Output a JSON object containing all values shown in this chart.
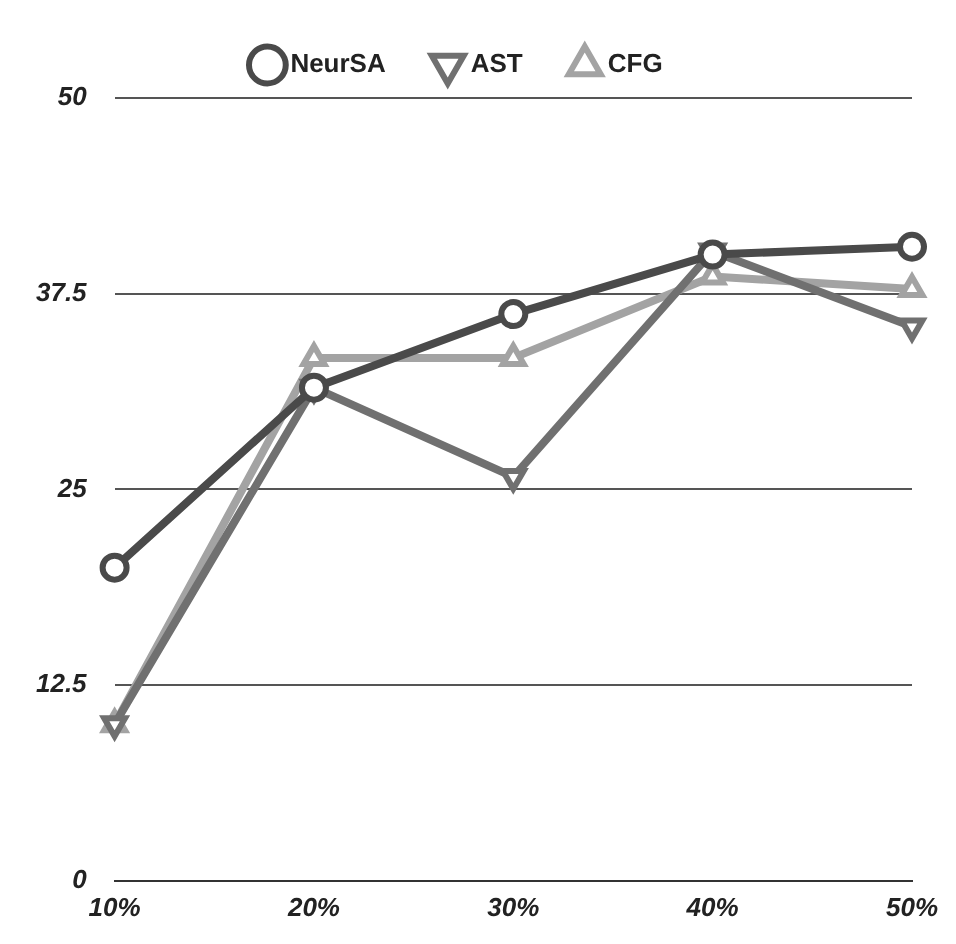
{
  "chart_data": {
    "type": "line",
    "categories": [
      "10%",
      "20%",
      "30%",
      "40%",
      "50%"
    ],
    "series": [
      {
        "name": "NeurSA",
        "color": "#4a4a4a",
        "marker": "circle",
        "values": [
          20,
          31.5,
          36.2,
          40,
          40.5
        ]
      },
      {
        "name": "AST",
        "color": "#707070",
        "marker": "triangle-down",
        "values": [
          10,
          31.5,
          25.8,
          40.2,
          35.4
        ]
      },
      {
        "name": "CFG",
        "color": "#a3a3a3",
        "marker": "triangle",
        "values": [
          10,
          33.4,
          33.4,
          38.6,
          37.8
        ]
      }
    ],
    "ylim": [
      0,
      50
    ],
    "yticks": [
      0,
      12.5,
      25,
      37.5,
      50
    ],
    "grid": "y",
    "legend": "top",
    "line_style": "solid"
  }
}
